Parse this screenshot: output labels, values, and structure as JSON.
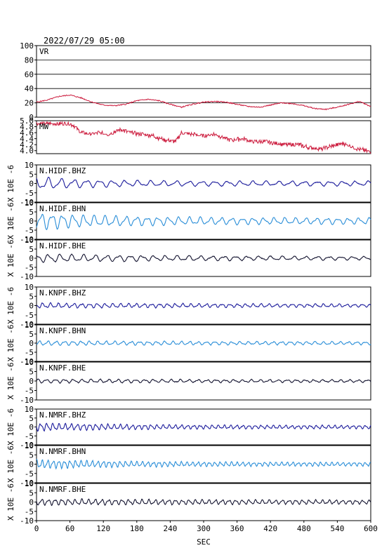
{
  "chart_data": {
    "type": "line",
    "title": "2022/07/29 05:00",
    "xlabel": "SEC",
    "xlim": [
      0,
      600
    ],
    "x_ticks": [
      "0",
      "60",
      "120",
      "180",
      "240",
      "300",
      "360",
      "420",
      "480",
      "540",
      "600"
    ],
    "panels": [
      {
        "name": "VR",
        "ylim": [
          0,
          100
        ],
        "y_ticks": [
          "100",
          "80",
          "60",
          "40",
          "20",
          "0"
        ],
        "ylabel": "",
        "grid": true,
        "color": "#cc1b3d",
        "x": [
          0,
          20,
          40,
          60,
          80,
          100,
          120,
          140,
          160,
          180,
          200,
          220,
          240,
          260,
          280,
          300,
          320,
          340,
          360,
          380,
          400,
          420,
          440,
          460,
          480,
          500,
          520,
          540,
          560,
          580,
          600
        ],
        "values": [
          21,
          24,
          29,
          31,
          27,
          21,
          17,
          16,
          18,
          23,
          25,
          23,
          18,
          14,
          18,
          21,
          22,
          21,
          18,
          15,
          14,
          17,
          20,
          19,
          16,
          12,
          11,
          14,
          18,
          22,
          15
        ]
      },
      {
        "name": "MW",
        "ylim": [
          3.9,
          5.0
        ],
        "y_ticks": [
          "5.0",
          "4.8",
          "4.6",
          "4.4",
          "4.2",
          "4.0"
        ],
        "ylabel": "",
        "grid": false,
        "color": "#cc1b3d",
        "x": [
          0,
          20,
          40,
          60,
          70,
          80,
          100,
          110,
          130,
          150,
          170,
          190,
          210,
          230,
          250,
          260,
          280,
          300,
          320,
          340,
          350,
          370,
          390,
          410,
          430,
          450,
          470,
          490,
          510,
          530,
          550,
          570,
          590,
          600
        ],
        "values": [
          4.9,
          4.9,
          4.9,
          4.9,
          4.8,
          4.6,
          4.55,
          4.6,
          4.55,
          4.7,
          4.6,
          4.55,
          4.5,
          4.35,
          4.3,
          4.6,
          4.55,
          4.5,
          4.55,
          4.4,
          4.35,
          4.4,
          4.3,
          4.3,
          4.25,
          4.2,
          4.2,
          4.1,
          4.05,
          4.15,
          4.25,
          4.1,
          4.0,
          3.95
        ]
      },
      {
        "name": "N.HIDF.BHZ",
        "ylim": [
          -10,
          10
        ],
        "y_ticks": [
          "10",
          "5",
          "0",
          "-5",
          "-10"
        ],
        "ylabel": "X 10E -6",
        "color": "#1c1c9c",
        "amp": 3.8,
        "decay": 0.011,
        "period": 23,
        "floor": 0.35,
        "seed": 3
      },
      {
        "name": "N.HIDF.BHN",
        "ylim": [
          -10,
          10
        ],
        "y_ticks": [
          "10",
          "5",
          "0",
          "-5",
          "-10"
        ],
        "ylabel": "X 10E -6",
        "color": "#2a8ed8",
        "amp": 5.0,
        "decay": 0.007,
        "period": 19,
        "floor": 0.35,
        "seed": 7
      },
      {
        "name": "N.HIDF.BHE",
        "ylim": [
          -10,
          10
        ],
        "y_ticks": [
          "10",
          "5",
          "0",
          "-5",
          "-10"
        ],
        "ylabel": "X 10E -6",
        "color": "#141430",
        "amp": 2.4,
        "decay": 0.003,
        "period": 21,
        "floor": 0.3,
        "seed": 11
      },
      {
        "name": "N.KNPF.BHZ",
        "ylim": [
          -10,
          10
        ],
        "y_ticks": [
          "10",
          "5",
          "0",
          "-5",
          "-10"
        ],
        "ylabel": "X 10E -6",
        "color": "#1c1c9c",
        "amp": 1.4,
        "decay": 0.002,
        "period": 14,
        "floor": 0.5,
        "seed": 13
      },
      {
        "name": "N.KNPF.BHN",
        "ylim": [
          -10,
          10
        ],
        "y_ticks": [
          "10",
          "5",
          "0",
          "-5",
          "-10"
        ],
        "ylabel": "X 10E -6",
        "color": "#2a8ed8",
        "amp": 1.3,
        "decay": 0.002,
        "period": 15,
        "floor": 0.5,
        "seed": 17
      },
      {
        "name": "N.KNPF.BHE",
        "ylim": [
          -10,
          10
        ],
        "y_ticks": [
          "10",
          "5",
          "0",
          "-5",
          "-10"
        ],
        "ylabel": "X 10E -6",
        "color": "#141430",
        "amp": 1.1,
        "decay": 0.002,
        "period": 16,
        "floor": 0.5,
        "seed": 19
      },
      {
        "name": "N.NMRF.BHZ",
        "ylim": [
          -10,
          10
        ],
        "y_ticks": [
          "10",
          "5",
          "0",
          "-5",
          "-10"
        ],
        "ylabel": "X 10E -6",
        "color": "#1c1c9c",
        "amp": 2.4,
        "decay": 0.006,
        "period": 11,
        "floor": 0.4,
        "seed": 23
      },
      {
        "name": "N.NMRF.BHN",
        "ylim": [
          -10,
          10
        ],
        "y_ticks": [
          "10",
          "5",
          "0",
          "-5",
          "-10"
        ],
        "ylabel": "X 10E -6",
        "color": "#2a8ed8",
        "amp": 2.6,
        "decay": 0.006,
        "period": 10,
        "floor": 0.4,
        "seed": 29
      },
      {
        "name": "N.NMRF.BHE",
        "ylim": [
          -10,
          10
        ],
        "y_ticks": [
          "10",
          "5",
          "0",
          "-5",
          "-10"
        ],
        "ylabel": "X 10E -6",
        "color": "#141430",
        "amp": 1.8,
        "decay": 0.002,
        "period": 12,
        "floor": 0.45,
        "seed": 31
      }
    ]
  }
}
